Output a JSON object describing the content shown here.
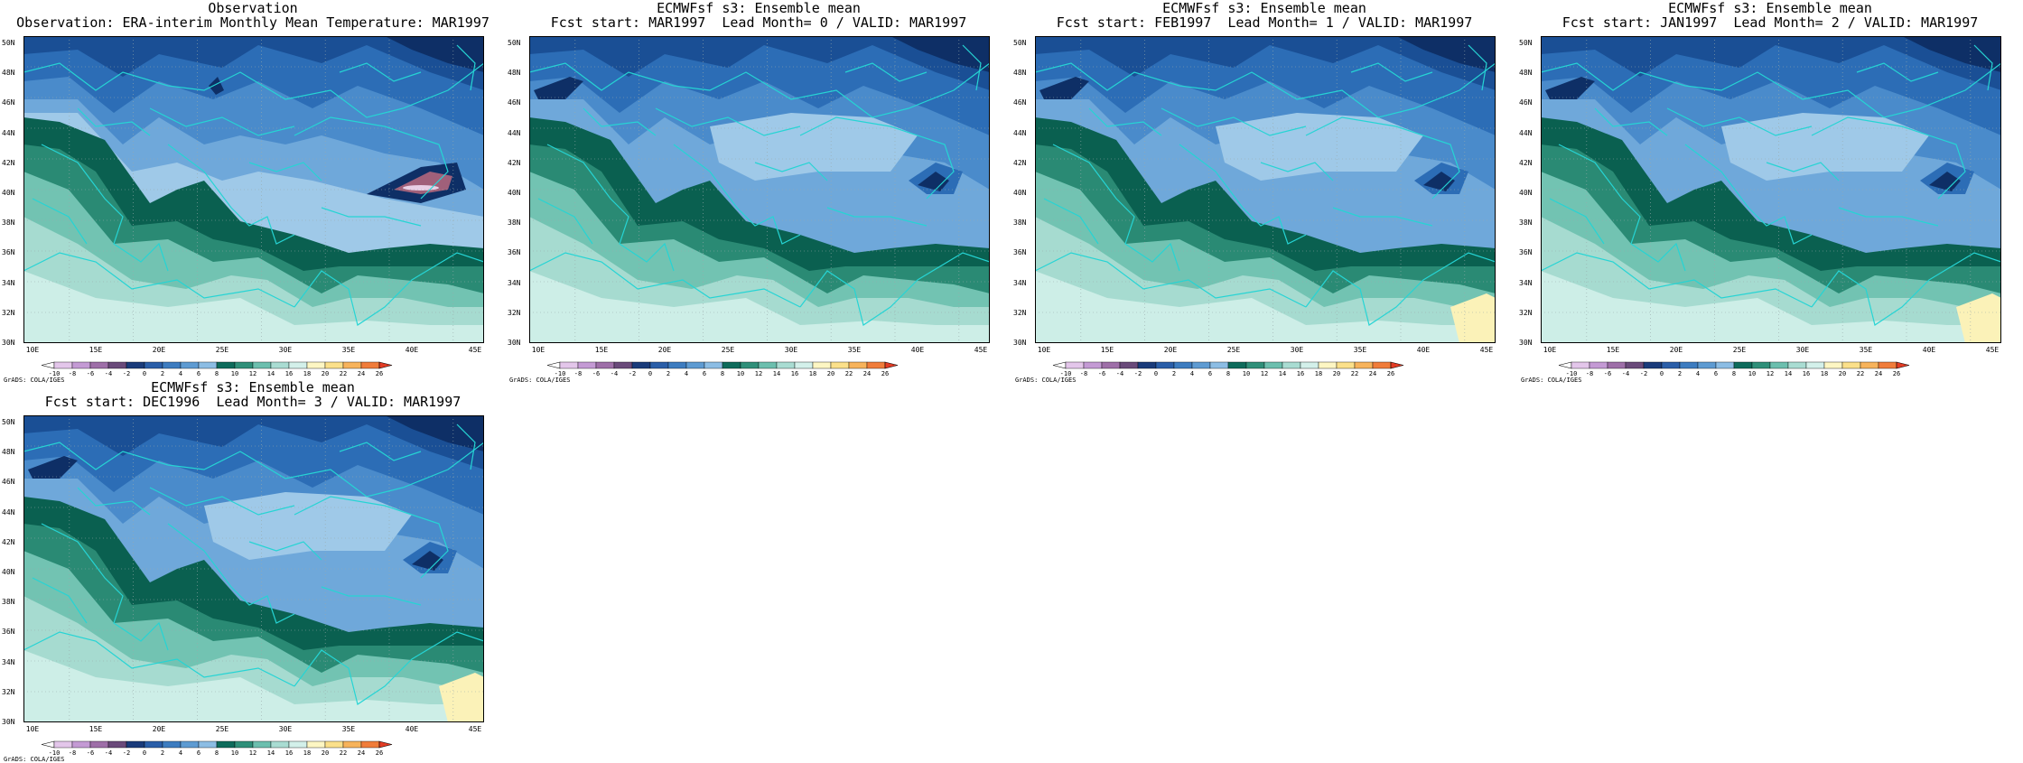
{
  "colorbar": {
    "labels": [
      "-10",
      "-8",
      "-6",
      "-4",
      "-2",
      "0",
      "2",
      "4",
      "6",
      "8",
      "10",
      "12",
      "14",
      "16",
      "18",
      "20",
      "22",
      "24",
      "26"
    ],
    "colors": [
      "#ffffff",
      "#e3c6ea",
      "#c49ad4",
      "#9e6fa8",
      "#6a4a7a",
      "#1a3b7a",
      "#2a5ea8",
      "#3d7cc0",
      "#5e9bd2",
      "#8cbde4",
      "#0e6b5b",
      "#2f8f79",
      "#6cbfae",
      "#a9dcd2",
      "#d3f0ea",
      "#fdf6c3",
      "#fbe08a",
      "#f7b35b",
      "#f07c3a",
      "#e23c24"
    ],
    "credit": "GrADS: COLA/IGES"
  },
  "axes": {
    "y_ticks": [
      "50N",
      "48N",
      "46N",
      "44N",
      "42N",
      "40N",
      "38N",
      "36N",
      "34N",
      "32N",
      "30N"
    ],
    "x_ticks": [
      "10E",
      "15E",
      "20E",
      "25E",
      "30E",
      "35E",
      "40E",
      "45E"
    ]
  },
  "panels": [
    {
      "title1": "Observation",
      "title2": "Observation: ERA-interim Monthly Mean Temperature: MAR1997"
    },
    {
      "title1": "ECMWFsf s3: Ensemble mean",
      "title2": "Fcst start: MAR1997  Lead Month= 0 / VALID: MAR1997"
    },
    {
      "title1": "ECMWFsf s3: Ensemble mean",
      "title2": "Fcst start: FEB1997  Lead Month= 1 / VALID: MAR1997"
    },
    {
      "title1": "ECMWFsf s3: Ensemble mean",
      "title2": "Fcst start: JAN1997  Lead Month= 2 / VALID: MAR1997"
    },
    {
      "title1": "ECMWFsf s3: Ensemble mean",
      "title2": "Fcst start: DEC1996  Lead Month= 3 / VALID: MAR1997"
    }
  ],
  "map_palette": {
    "d1": "#0e2f66",
    "d2": "#1a4f95",
    "d3": "#2c6db6",
    "d4": "#4a8bcb",
    "d5": "#6fa8da",
    "d6": "#9fc9e8",
    "g1": "#0a6050",
    "g2": "#2a8a74",
    "g3": "#72c3b2",
    "g4": "#a6dbd0",
    "g5": "#cdeee7",
    "y1": "#fbf2b8",
    "p1": "#a0607a",
    "p2": "#e8d0e6",
    "coast": "#26d4d4"
  }
}
